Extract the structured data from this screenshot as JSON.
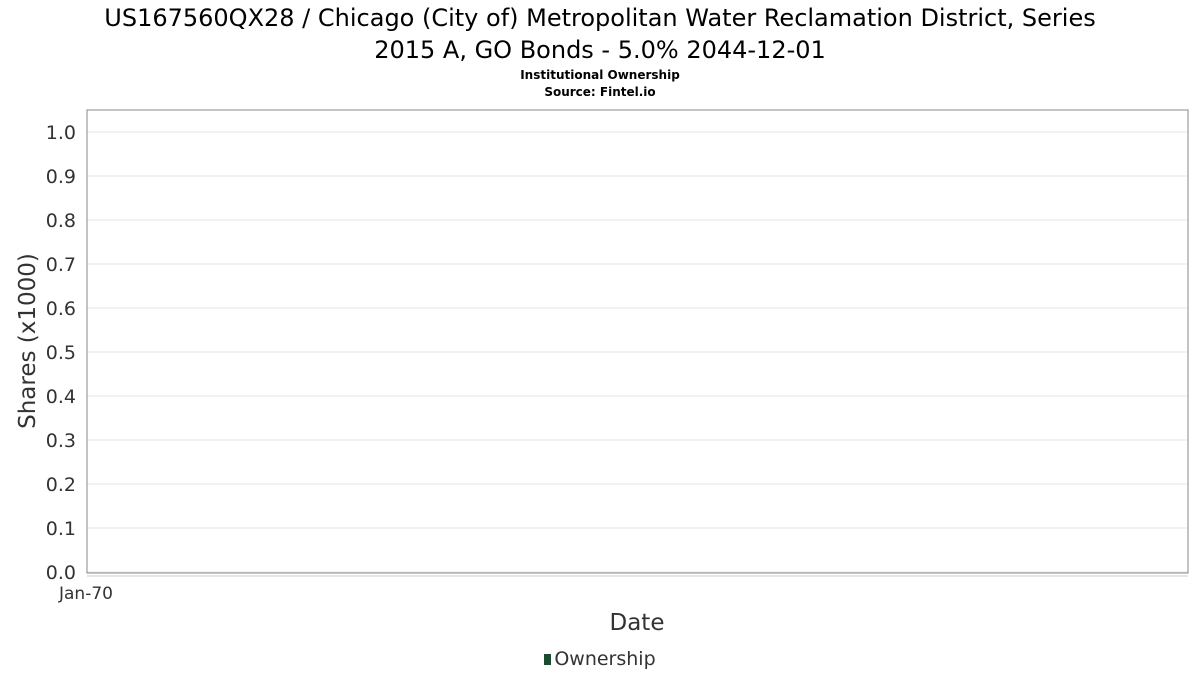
{
  "page": {
    "title_line1": "US167560QX28 / Chicago (City of) Metropolitan Water Reclamation District, Series",
    "title_line2": "2015 A, GO Bonds - 5.0% 2044-12-01",
    "subtitle1": "Institutional Ownership",
    "subtitle2": "Source: Fintel.io"
  },
  "colors": {
    "series_ownership": "#1a4d2e",
    "grid": "#e6e6e6",
    "frame": "#888888",
    "axis_text": "#333333"
  },
  "chart_data": {
    "type": "line",
    "title": "US167560QX28 / Chicago (City of) Metropolitan Water Reclamation District, Series 2015 A, GO Bonds - 5.0% 2044-12-01",
    "subtitle": "Institutional Ownership\nSource: Fintel.io",
    "xlabel": "Date",
    "ylabel": "Shares (x1000)",
    "x_tick_labels": [
      "Jan-70"
    ],
    "y_ticks": [
      0.0,
      0.1,
      0.2,
      0.3,
      0.4,
      0.5,
      0.6,
      0.7,
      0.8,
      0.9,
      1.0
    ],
    "y_tick_labels": [
      "0.0",
      "0.1",
      "0.2",
      "0.3",
      "0.4",
      "0.5",
      "0.6",
      "0.7",
      "0.8",
      "0.9",
      "1.0"
    ],
    "ylim": [
      0,
      1.0
    ],
    "grid": true,
    "legend_position": "bottom-center",
    "series": [
      {
        "name": "Ownership",
        "x": [],
        "values": []
      }
    ]
  }
}
